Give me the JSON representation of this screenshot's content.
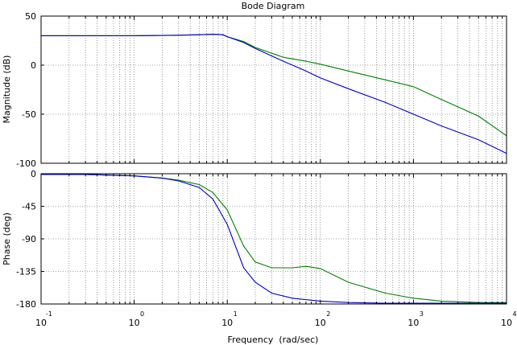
{
  "figure_title": "Bode Diagram",
  "colors": {
    "series_green": "#008000",
    "series_blue": "#0000cc",
    "grid": "#555555",
    "axes": "#000000"
  },
  "chart_data": [
    {
      "type": "line",
      "title": "Bode Diagram",
      "xlabel": "Frequency  (rad/sec)",
      "ylabel": "Magnitude (dB)",
      "xscale": "log",
      "xlim": [
        0.1,
        10000
      ],
      "ylim": [
        -100,
        50
      ],
      "yticks": [
        50,
        0,
        -50,
        -100
      ],
      "ytick_labels": [
        "50",
        "0",
        "-50",
        "-100"
      ],
      "grid": true,
      "series": [
        {
          "color": "#008000",
          "x": [
            0.1,
            1,
            3,
            5,
            7,
            9,
            10,
            15,
            20,
            40,
            70,
            100,
            200,
            500,
            1000,
            2000,
            5000,
            10000
          ],
          "y": [
            30,
            30,
            30.5,
            31,
            31.5,
            31,
            29,
            24,
            18,
            8,
            4,
            1,
            -6,
            -15,
            -22,
            -35,
            -52,
            -72
          ]
        },
        {
          "color": "#0000cc",
          "x": [
            0.1,
            1,
            3,
            5,
            7,
            9,
            10,
            15,
            20,
            40,
            70,
            100,
            200,
            500,
            1000,
            2000,
            5000,
            10000
          ],
          "y": [
            30,
            30,
            30.5,
            31,
            31.5,
            31,
            29,
            23,
            17,
            4,
            -6,
            -13,
            -24,
            -38,
            -50,
            -62,
            -76,
            -90
          ]
        }
      ]
    },
    {
      "type": "line",
      "xlabel": "Frequency  (rad/sec)",
      "ylabel": "Phase (deg)",
      "xscale": "log",
      "xlim": [
        0.1,
        10000
      ],
      "ylim": [
        -180,
        0
      ],
      "yticks": [
        0,
        -45,
        -90,
        -135,
        -180
      ],
      "ytick_labels": [
        "0",
        "-45",
        "-90",
        "-135",
        "-180"
      ],
      "xticks": [
        0.1,
        1,
        10,
        100,
        1000,
        10000
      ],
      "xtick_bases": [
        "10",
        "10",
        "10",
        "10",
        "10",
        "10"
      ],
      "xtick_exps": [
        "-1",
        "0",
        "1",
        "2",
        "3",
        "4"
      ],
      "grid": true,
      "series": [
        {
          "color": "#008000",
          "x": [
            0.1,
            0.3,
            1,
            2,
            3,
            5,
            7,
            10,
            15,
            20,
            30,
            50,
            70,
            100,
            200,
            500,
            1000,
            2000,
            5000,
            10000
          ],
          "y": [
            -1,
            -1,
            -3,
            -6,
            -9,
            -15,
            -26,
            -50,
            -100,
            -122,
            -130,
            -130,
            -128,
            -131,
            -150,
            -165,
            -172,
            -176,
            -178,
            -178
          ]
        },
        {
          "color": "#0000cc",
          "x": [
            0.1,
            0.3,
            1,
            2,
            3,
            5,
            7,
            10,
            15,
            20,
            30,
            50,
            100,
            200,
            500,
            1000,
            2000,
            5000,
            10000
          ],
          "y": [
            -1,
            -1,
            -3,
            -6,
            -10,
            -19,
            -35,
            -70,
            -130,
            -150,
            -165,
            -172,
            -176,
            -178,
            -179,
            -179,
            -179,
            -179,
            -179
          ]
        }
      ]
    }
  ]
}
